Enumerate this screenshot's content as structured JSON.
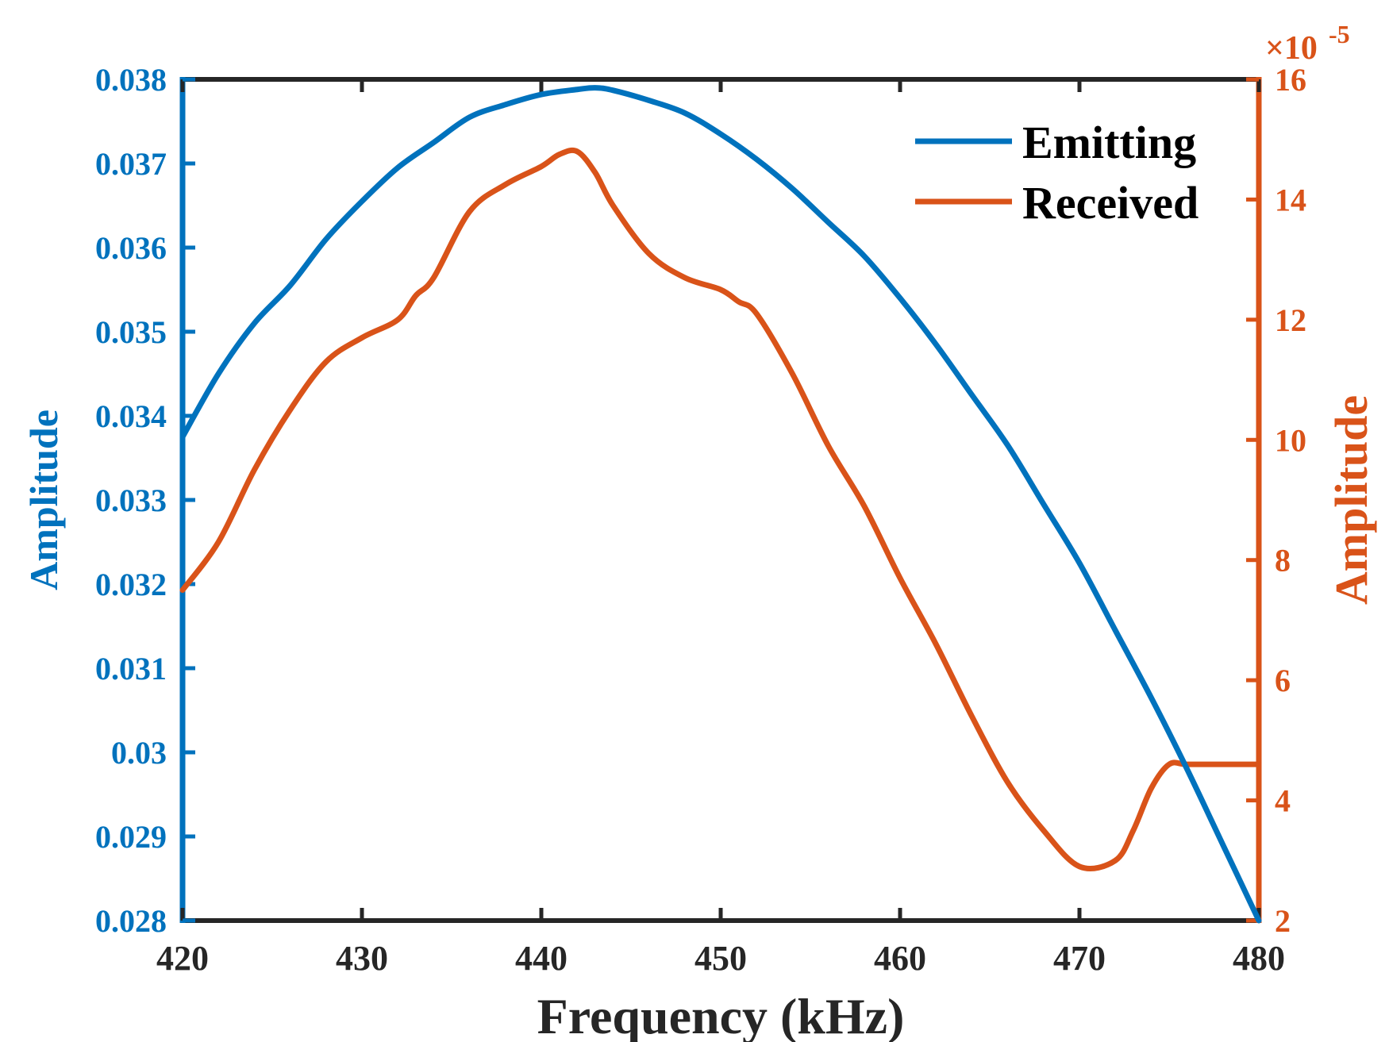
{
  "chart_data": {
    "type": "line",
    "title": "",
    "xlabel": "Frequency (kHz)",
    "xlim": [
      420,
      480
    ],
    "xticks": [
      420,
      430,
      440,
      450,
      460,
      470,
      480
    ],
    "xtick_labels": [
      "420",
      "430",
      "440",
      "450",
      "460",
      "470",
      "480"
    ],
    "y_left": {
      "label": "Amplitude",
      "ylim": [
        0.028,
        0.038
      ],
      "ticks": [
        0.028,
        0.029,
        0.03,
        0.031,
        0.032,
        0.033,
        0.034,
        0.035,
        0.036,
        0.037,
        0.038
      ],
      "tick_labels": [
        "0.028",
        "0.029",
        "0.03",
        "0.031",
        "0.032",
        "0.033",
        "0.034",
        "0.035",
        "0.036",
        "0.037",
        "0.038"
      ],
      "color": "#0072BD"
    },
    "y_right": {
      "label": "Amplitude",
      "ylim": [
        2,
        16
      ],
      "ticks": [
        2,
        4,
        6,
        8,
        10,
        12,
        14,
        16
      ],
      "tick_labels": [
        "2",
        "4",
        "6",
        "8",
        "10",
        "12",
        "14",
        "16"
      ],
      "exponent_prefix": "×10",
      "exponent_power": "-5",
      "color": "#D95319"
    },
    "legend": {
      "placement": "top-right",
      "box": false
    },
    "grid": false,
    "series": [
      {
        "name": "Emitting",
        "axis": "left",
        "color": "#0072BD",
        "x": [
          420,
          422,
          424,
          426,
          428,
          430,
          432,
          434,
          436,
          438,
          440,
          442,
          443,
          444,
          446,
          448,
          450,
          452,
          454,
          456,
          458,
          460,
          462,
          464,
          466,
          468,
          470,
          472,
          474,
          476,
          478,
          480
        ],
        "y": [
          0.03375,
          0.0345,
          0.0351,
          0.03555,
          0.0361,
          0.03655,
          0.03695,
          0.03725,
          0.03755,
          0.0377,
          0.03782,
          0.03788,
          0.0379,
          0.03787,
          0.03775,
          0.0376,
          0.03735,
          0.03705,
          0.0367,
          0.0363,
          0.0359,
          0.0354,
          0.03485,
          0.03425,
          0.03365,
          0.03295,
          0.03225,
          0.03145,
          0.03065,
          0.0298,
          0.0289,
          0.028
        ]
      },
      {
        "name": "Received",
        "axis": "right",
        "color": "#D95319",
        "x": [
          420,
          422,
          424,
          426,
          428,
          430,
          432,
          433,
          434,
          436,
          438,
          440,
          441,
          442,
          443,
          444,
          446,
          448,
          450,
          451,
          452,
          454,
          456,
          458,
          460,
          462,
          464,
          466,
          468,
          470,
          472,
          473,
          474,
          475,
          476,
          478,
          480
        ],
        "y": [
          7.5,
          8.3,
          9.5,
          10.5,
          11.3,
          11.7,
          12.0,
          12.4,
          12.7,
          13.8,
          14.25,
          14.55,
          14.75,
          14.8,
          14.45,
          13.9,
          13.1,
          12.7,
          12.5,
          12.3,
          12.1,
          11.1,
          9.9,
          8.9,
          7.7,
          6.6,
          5.4,
          4.3,
          3.5,
          2.9,
          3.0,
          3.5,
          4.2,
          4.6,
          4.6,
          4.6,
          4.6
        ]
      }
    ]
  }
}
